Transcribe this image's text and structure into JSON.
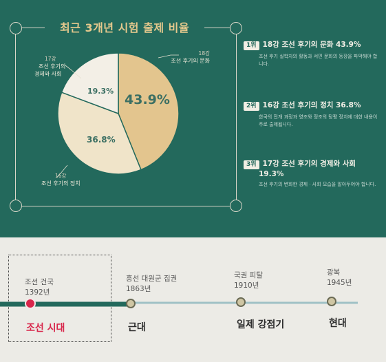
{
  "chart_data": {
    "type": "pie",
    "title": "최근 3개년 시험 출제 비율",
    "slices": [
      {
        "num": "18강",
        "name": "조선 후기의 문화",
        "value": 43.9,
        "label": "43.9%",
        "color": "#e3c58e"
      },
      {
        "num": "16강",
        "name": "조선 후기의 정치",
        "value": 36.8,
        "label": "36.8%",
        "color": "#f0e4c9"
      },
      {
        "num": "17강",
        "name1": "조선 후기의",
        "name2": "경제와 사회",
        "value": 19.3,
        "label": "19.3%",
        "color": "#f3efe6"
      }
    ]
  },
  "ranks": [
    {
      "badge": "1위",
      "head": "18강 조선 후기의 문화 43.9%",
      "desc": "조선 후기 실학자의 활동과 서민 문화의 등장을 파악해야 합니다."
    },
    {
      "badge": "2위",
      "head": "16강 조선 후기의 정치 36.8%",
      "desc": "한국의 전개 과정과 영조와 정조의 탕평 정치에 대한 내용이 주로 출제됩니다."
    },
    {
      "badge": "3위",
      "head1": "17강 조선 후기의 경제와 사회",
      "head2": "19.3%",
      "desc": "조선 후기의 변화한 경제 · 사회 모습을 알아두어야 합니다."
    }
  ],
  "timeline": {
    "events": [
      {
        "name": "조선 건국",
        "year": "1392년"
      },
      {
        "name": "흥선 대원군 집권",
        "year": "1863년"
      },
      {
        "name": "국권 피탈",
        "year": "1910년"
      },
      {
        "name": "광복",
        "year": "1945년"
      }
    ],
    "eras": [
      "조선 시대",
      "근대",
      "일제 강점기",
      "현대"
    ]
  },
  "colors": {
    "green": "#23695c",
    "gold": "#e3c58e",
    "red": "#d8264b"
  }
}
